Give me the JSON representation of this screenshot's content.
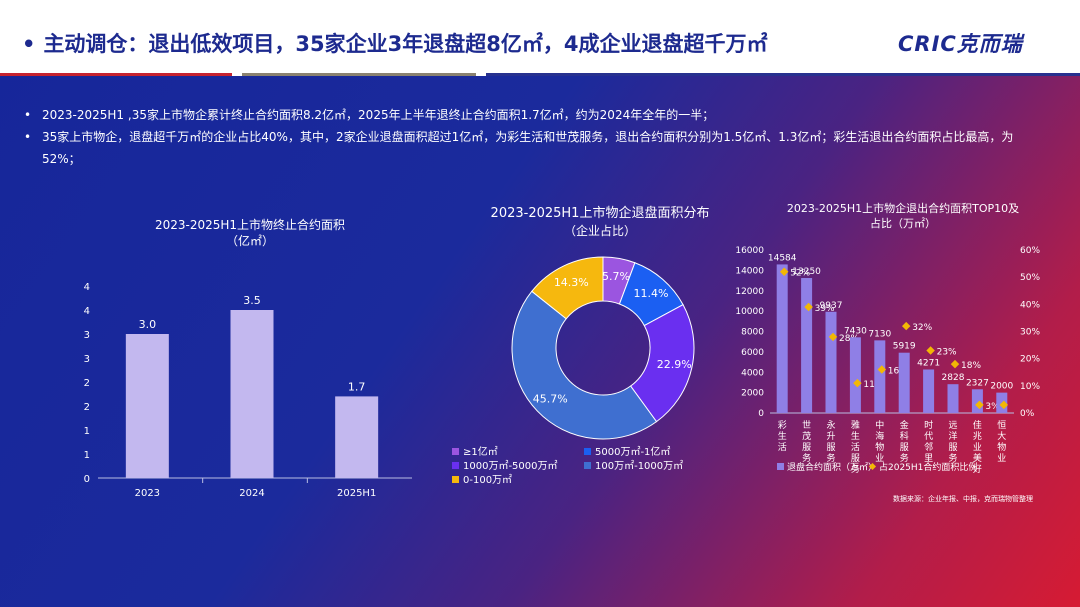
{
  "header": {
    "bullet": "•",
    "title": "主动调仓：退出低效项目，35家企业3年退盘超8亿㎡，4成企业退盘超千万㎡",
    "logo": "CRIC克而瑞"
  },
  "bullets": [
    "2023-2025H1 ,35家上市物企累计终止合约面积8.2亿㎡，2025年上半年退终止合约面积1.7亿㎡，约为2024年全年的一半；",
    "35家上市物企，退盘超千万㎡的企业占比40%，其中，2家企业退盘面积超过1亿㎡，为彩生活和世茂服务，退出合约面积分别为1.5亿㎡、1.3亿㎡；彩生活退出合约面积占比最高，为52%；"
  ],
  "source": "数据来源：企业年报、中报，克而瑞物管整理",
  "colors": {
    "bar": "#c3b8ef",
    "bar2": "#8f7fe6",
    "marker": "#f2b705"
  },
  "chart_data": [
    {
      "type": "bar",
      "title": "2023-2025H1上市物终止合约面积",
      "subtitle": "（亿㎡）",
      "categories": [
        "2023",
        "2024",
        "2025H1"
      ],
      "values": [
        3.0,
        3.5,
        1.7
      ],
      "value_labels": [
        "3.0",
        "3.5",
        "1.7"
      ],
      "ylim": [
        0,
        4
      ],
      "ytick_labels": [
        "0",
        "1",
        "1",
        "2",
        "2",
        "3",
        "3",
        "4",
        "4"
      ],
      "grid": false
    },
    {
      "type": "pie",
      "title": "2023-2025H1上市物企退盘面积分布",
      "subtitle": "（企业占比）",
      "slices": [
        {
          "label": "≥1亿㎡",
          "value": 5.7,
          "text": "5.7%",
          "color": "#9b55e0"
        },
        {
          "label": "5000万㎡-1亿㎡",
          "value": 11.4,
          "text": "11.4%",
          "color": "#1b5ff2"
        },
        {
          "label": "1000万㎡-5000万㎡",
          "value": 22.9,
          "text": "22.9%",
          "color": "#6a2ff0"
        },
        {
          "label": "100万㎡-1000万㎡",
          "value": 45.7,
          "text": "45.7%",
          "color": "#3f6fd0"
        },
        {
          "label": "0-100万㎡",
          "value": 14.3,
          "text": "14.3%",
          "color": "#f6b80e"
        }
      ],
      "legend_position": "bottom"
    },
    {
      "type": "bar",
      "title": "2023-2025H1上市物企退出合约面积TOP10及",
      "subtitle": "占比（万㎡）",
      "categories": [
        "彩生活",
        "世茂服务",
        "永升服务",
        "雅生活服务",
        "中海物业",
        "金科服务",
        "时代邻里",
        "远洋服务",
        "佳兆业美好",
        "恒大物业"
      ],
      "series": [
        {
          "name": "退盘合约面积（万㎡）",
          "values": [
            14584,
            13250,
            9937,
            7430,
            7130,
            5919,
            4271,
            2828,
            2327,
            2000
          ]
        },
        {
          "name": "占2025H1合约面积比例",
          "values": [
            52,
            39,
            28,
            11,
            16,
            32,
            23,
            18,
            3,
            3
          ],
          "labels": [
            "52%",
            "39%",
            "28%",
            "11%",
            "16%",
            "32%",
            "23%",
            "18%",
            "3%",
            ""
          ]
        }
      ],
      "ylim": [
        0,
        16000
      ],
      "y2lim": [
        0,
        60
      ],
      "yticks": [
        0,
        2000,
        4000,
        6000,
        8000,
        10000,
        12000,
        14000,
        16000
      ],
      "y2ticks": [
        "0%",
        "10%",
        "20%",
        "30%",
        "40%",
        "50%",
        "60%"
      ],
      "legend_position": "bottom"
    }
  ]
}
